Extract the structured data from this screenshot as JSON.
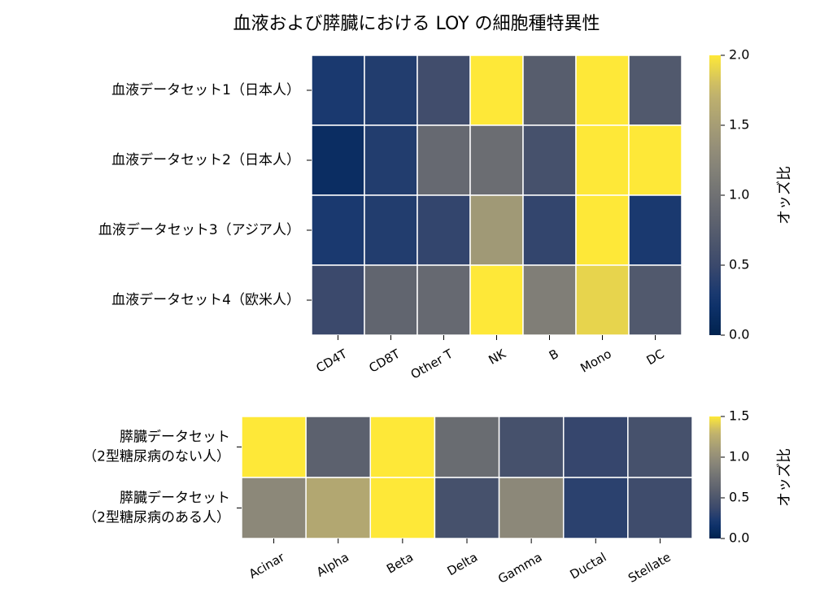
{
  "chart_data": [
    {
      "type": "heatmap",
      "title": "血液および膵臓における LOY の細胞種特異性",
      "categories": [
        "CD4T",
        "CD8T",
        "Other T",
        "NK",
        "B",
        "Mono",
        "DC"
      ],
      "rows": [
        [
          "血液データセット1（日本人）"
        ],
        [
          "血液データセット2（日本人）"
        ],
        [
          "血液データセット3（アジア人）"
        ],
        [
          "血液データセット4（欧米人）"
        ]
      ],
      "values": [
        [
          0.3,
          0.35,
          0.55,
          2.0,
          0.75,
          2.0,
          0.7
        ],
        [
          0.15,
          0.35,
          0.9,
          0.95,
          0.6,
          2.0,
          2.0
        ],
        [
          0.3,
          0.35,
          0.45,
          1.45,
          0.45,
          2.0,
          0.3
        ],
        [
          0.5,
          0.85,
          0.9,
          2.0,
          1.15,
          1.9,
          0.7
        ]
      ],
      "colormap": "cividis",
      "clim": [
        0,
        2
      ],
      "cticks": [
        {
          "value": 0,
          "label": "0.0"
        },
        0.5,
        {
          "value": 1,
          "label": "1.0"
        },
        1.5,
        {
          "value": 2,
          "label": "2.0"
        }
      ],
      "colorbar_label": "オッズ比"
    },
    {
      "type": "heatmap",
      "categories": [
        "Acinar",
        "Alpha",
        "Beta",
        "Delta",
        "Gamma",
        "Ductal",
        "Stellate"
      ],
      "rows": [
        [
          "膵臓データセット",
          "（2型糖尿病のない人）"
        ],
        [
          "膵臓データセット",
          "（2型糖尿病のある人）"
        ]
      ],
      "values": [
        [
          1.5,
          0.6,
          1.5,
          0.7,
          0.45,
          0.35,
          0.45
        ],
        [
          0.95,
          1.2,
          1.5,
          0.45,
          0.95,
          0.3,
          0.4
        ]
      ],
      "colormap": "cividis",
      "clim": [
        0,
        1.5
      ],
      "cticks": [
        {
          "value": 0,
          "label": "0.0"
        },
        0.5,
        {
          "value": 1,
          "label": "1.0"
        },
        1.5
      ],
      "colorbar_label": "オッズ比"
    }
  ]
}
